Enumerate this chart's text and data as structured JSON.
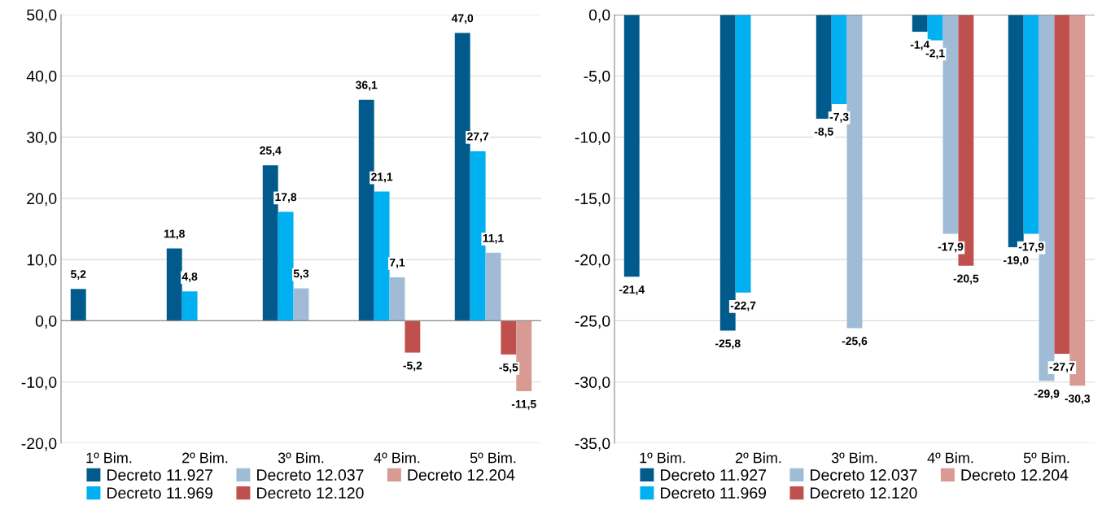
{
  "chart_data": [
    {
      "type": "bar",
      "categories": [
        "1º Bim.",
        "2º Bim.",
        "3º Bim.",
        "4º Bim.",
        "5º Bim."
      ],
      "series": [
        {
          "name": "Decreto 11.927",
          "color": "#005b8c",
          "values": [
            5.2,
            11.8,
            25.4,
            36.1,
            47.0
          ],
          "value_labels": [
            "5,2",
            "11,8",
            "25,4",
            "36,1",
            "47,0"
          ]
        },
        {
          "name": "Decreto 11.969",
          "color": "#00b0f0",
          "values": [
            null,
            4.8,
            17.8,
            21.1,
            27.7
          ],
          "value_labels": [
            null,
            "4,8",
            "17,8",
            "21,1",
            "27,7"
          ]
        },
        {
          "name": "Decreto 12.037",
          "color": "#9fbbd6",
          "values": [
            null,
            null,
            5.3,
            7.1,
            11.1
          ],
          "value_labels": [
            null,
            null,
            "5,3",
            "7,1",
            "11,1"
          ]
        },
        {
          "name": "Decreto 12.120",
          "color": "#c0504d",
          "values": [
            null,
            null,
            null,
            -5.2,
            -5.5
          ],
          "value_labels": [
            null,
            null,
            null,
            "-5,2",
            "-5,5"
          ]
        },
        {
          "name": "Decreto 12.204",
          "color": "#d99a94",
          "values": [
            null,
            null,
            null,
            null,
            -11.5
          ],
          "value_labels": [
            null,
            null,
            null,
            null,
            "-11,5"
          ]
        }
      ],
      "ylim": [
        -20,
        50
      ],
      "yticks": [
        {
          "value": -20,
          "label": "-20,0"
        },
        {
          "value": -10,
          "label": "-10,0"
        },
        {
          "value": 0,
          "label": "0,0"
        },
        {
          "value": 10,
          "label": "10,0"
        },
        {
          "value": 20,
          "label": "20,0"
        },
        {
          "value": 30,
          "label": "30,0"
        },
        {
          "value": 40,
          "label": "40,0"
        },
        {
          "value": 50,
          "label": "50,0"
        }
      ],
      "grid": "y",
      "legend": "bottom"
    },
    {
      "type": "bar",
      "categories": [
        "1º Bim.",
        "2º Bim.",
        "3º Bim.",
        "4º Bim.",
        "5º Bim."
      ],
      "series": [
        {
          "name": "Decreto 11.927",
          "color": "#005b8c",
          "values": [
            -21.4,
            -25.8,
            -8.5,
            -1.4,
            -19.0
          ],
          "value_labels": [
            "-21,4",
            "-25,8",
            "-8,5",
            "-1,4",
            "-19,0"
          ]
        },
        {
          "name": "Decreto 11.969",
          "color": "#00b0f0",
          "values": [
            null,
            -22.7,
            -7.3,
            -2.1,
            -17.9
          ],
          "value_labels": [
            null,
            "-22,7",
            "-7,3",
            "-2,1",
            "-17,9"
          ]
        },
        {
          "name": "Decreto 12.037",
          "color": "#9fbbd6",
          "values": [
            null,
            null,
            -25.6,
            -17.9,
            -29.9
          ],
          "value_labels": [
            null,
            null,
            "-25,6",
            "-17,9",
            "-29,9"
          ]
        },
        {
          "name": "Decreto 12.120",
          "color": "#c0504d",
          "values": [
            null,
            null,
            null,
            -20.5,
            -27.7
          ],
          "value_labels": [
            null,
            null,
            null,
            "-20,5",
            "-27,7"
          ]
        },
        {
          "name": "Decreto 12.204",
          "color": "#d99a94",
          "values": [
            null,
            null,
            null,
            null,
            -30.3
          ],
          "value_labels": [
            null,
            null,
            null,
            null,
            "-30,3"
          ]
        }
      ],
      "ylim": [
        -35,
        0
      ],
      "yticks": [
        {
          "value": -35,
          "label": "-35,0"
        },
        {
          "value": -30,
          "label": "-30,0"
        },
        {
          "value": -25,
          "label": "-25,0"
        },
        {
          "value": -20,
          "label": "-20,0"
        },
        {
          "value": -15,
          "label": "-15,0"
        },
        {
          "value": -10,
          "label": "-10,0"
        },
        {
          "value": -5,
          "label": "-5,0"
        },
        {
          "value": 0,
          "label": "0,0"
        }
      ],
      "grid": "y",
      "legend": "bottom"
    }
  ]
}
